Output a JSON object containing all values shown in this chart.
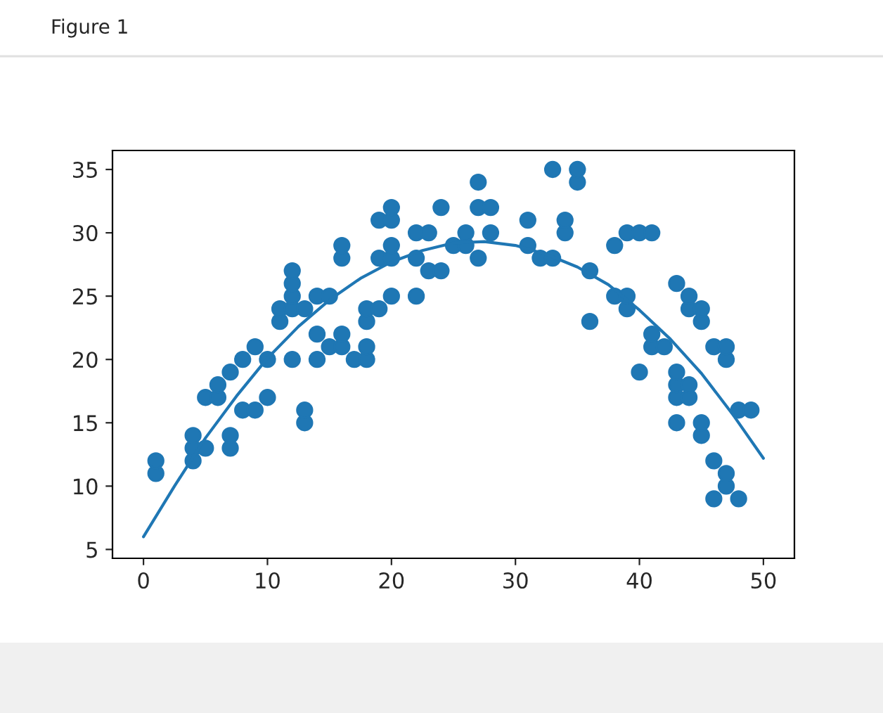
{
  "chart_data": {
    "type": "scatter",
    "annotations": [
      "Figure 1"
    ],
    "series": [
      {
        "color": "#1f77b4",
        "marker": "circle",
        "x": [
          1,
          1,
          4,
          4,
          4,
          5,
          5,
          6,
          6,
          7,
          7,
          7,
          8,
          8,
          9,
          9,
          10,
          10,
          11,
          11,
          12,
          12,
          12,
          12,
          12,
          13,
          13,
          13,
          14,
          14,
          14,
          15,
          15,
          16,
          16,
          16,
          16,
          17,
          18,
          18,
          18,
          18,
          19,
          19,
          19,
          20,
          20,
          20,
          20,
          20,
          22,
          22,
          22,
          23,
          23,
          24,
          24,
          25,
          26,
          26,
          27,
          27,
          27,
          28,
          28,
          31,
          31,
          32,
          33,
          33,
          34,
          34,
          35,
          35,
          36,
          36,
          38,
          38,
          39,
          39,
          39,
          40,
          40,
          41,
          41,
          41,
          42,
          43,
          43,
          43,
          43,
          43,
          44,
          44,
          44,
          44,
          45,
          45,
          45,
          45,
          46,
          46,
          46,
          47,
          47,
          47,
          47,
          48,
          48,
          49
        ],
        "values": [
          11,
          12,
          12,
          13,
          14,
          13,
          17,
          17,
          18,
          13,
          14,
          19,
          16,
          20,
          16,
          21,
          17,
          20,
          23,
          24,
          20,
          24,
          25,
          26,
          27,
          15,
          16,
          24,
          20,
          22,
          25,
          21,
          25,
          21,
          22,
          28,
          29,
          20,
          20,
          21,
          23,
          24,
          24,
          28,
          31,
          25,
          28,
          29,
          31,
          32,
          25,
          28,
          30,
          27,
          30,
          27,
          32,
          29,
          29,
          30,
          28,
          32,
          34,
          30,
          32,
          29,
          31,
          28,
          28,
          35,
          30,
          31,
          34,
          35,
          23,
          27,
          25,
          29,
          24,
          25,
          30,
          19,
          30,
          21,
          22,
          30,
          21,
          15,
          17,
          18,
          19,
          26,
          17,
          18,
          24,
          25,
          14,
          15,
          23,
          24,
          9,
          12,
          21,
          10,
          11,
          20,
          21,
          9,
          16,
          16
        ]
      },
      {
        "type": "line",
        "color": "#1f77b4",
        "marker": "none",
        "line_style": "solid",
        "x": [
          0,
          2.5,
          5,
          7.5,
          10,
          12.5,
          15,
          17.5,
          20,
          22.5,
          25,
          27.5,
          30,
          32.5,
          35,
          37.5,
          40,
          42.5,
          45,
          47.5,
          50
        ],
        "values": [
          6,
          10.0,
          13.8,
          17.1,
          20.1,
          22.6,
          24.7,
          26.4,
          27.7,
          28.6,
          29.2,
          29.3,
          29.0,
          28.3,
          27.3,
          25.9,
          23.9,
          21.6,
          18.9,
          15.7,
          12.2
        ]
      }
    ],
    "xlim": [
      -2.5,
      52.5
    ],
    "xticks": [
      0,
      10,
      20,
      30,
      40,
      50
    ],
    "ylim": [
      4.3,
      36.5
    ],
    "yticks": [
      5,
      10,
      15,
      20,
      25,
      30,
      35
    ],
    "grid": false,
    "legend": false
  }
}
